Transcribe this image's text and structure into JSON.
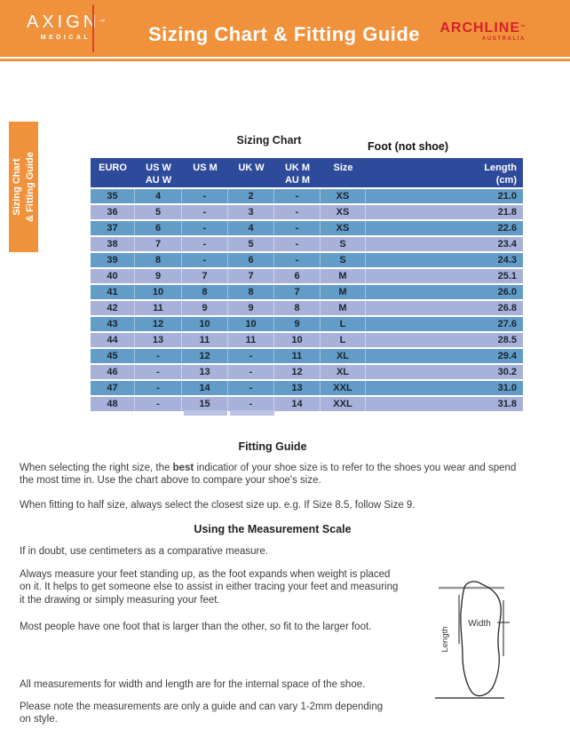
{
  "header": {
    "axign_name": "AXIGN",
    "axign_tm": "™",
    "axign_sub": "MEDICAL",
    "title": "Sizing Chart & Fitting Guide",
    "archline_name": "ARCHLINE",
    "archline_tm": "™",
    "archline_sub": "AUSTRALIA"
  },
  "side_tab": {
    "label": "Sizing Chart\n& Fitting Guide"
  },
  "sizing_chart": {
    "title": "Sizing Chart",
    "note": "Foot (not shoe)",
    "columns": [
      "EURO",
      "US W\nAU W",
      "US M",
      "UK W",
      "UK M\nAU M",
      "Size",
      "Length\n(cm)"
    ],
    "rows": [
      [
        "35",
        "4",
        "-",
        "2",
        "-",
        "XS",
        "21.0"
      ],
      [
        "36",
        "5",
        "-",
        "3",
        "-",
        "XS",
        "21.8"
      ],
      [
        "37",
        "6",
        "-",
        "4",
        "-",
        "XS",
        "22.6"
      ],
      [
        "38",
        "7",
        "-",
        "5",
        "-",
        "S",
        "23.4"
      ],
      [
        "39",
        "8",
        "-",
        "6",
        "-",
        "S",
        "24.3"
      ],
      [
        "40",
        "9",
        "7",
        "7",
        "6",
        "M",
        "25.1"
      ],
      [
        "41",
        "10",
        "8",
        "8",
        "7",
        "M",
        "26.0"
      ],
      [
        "42",
        "11",
        "9",
        "9",
        "8",
        "M",
        "26.8"
      ],
      [
        "43",
        "12",
        "10",
        "10",
        "9",
        "L",
        "27.6"
      ],
      [
        "44",
        "13",
        "11",
        "11",
        "10",
        "L",
        "28.5"
      ],
      [
        "45",
        "-",
        "12",
        "-",
        "11",
        "XL",
        "29.4"
      ],
      [
        "46",
        "-",
        "13",
        "-",
        "12",
        "XL",
        "30.2"
      ],
      [
        "47",
        "-",
        "14",
        "-",
        "13",
        "XXL",
        "31.0"
      ],
      [
        "48",
        "-",
        "15",
        "-",
        "14",
        "XXL",
        "31.8"
      ]
    ]
  },
  "fitting_guide": {
    "heading": "Fitting Guide",
    "p1_before": "When selecting the right size, the ",
    "p1_bold": "best",
    "p1_after": " indicatior of your shoe size is to refer to the shoes you wear and spend\nthe most time in. Use the chart above to compare your shoe's size.",
    "p2": "When fitting to half size, always select the closest size up. e.g. If Size 8.5, follow Size 9."
  },
  "measurement_scale": {
    "heading": "Using the Measurement Scale",
    "p1": "If in doubt, use centimeters as a comparative measure.",
    "p2": "Always measure your feet standing up, as the foot expands when weight is placed\non it. It helps to get someone else to assist in either tracing your feet and measuring\nit the drawing or simply measuring your feet.",
    "p3": "Most people have one foot that is larger than the other, so fit to the larger foot.",
    "p4": "All measurements for width and length are for the internal space of the shoe.",
    "p5": "Please note the measurements are only a guide and can vary 1-2mm depending\non style."
  },
  "diagram": {
    "width_label": "Width",
    "length_label": "Length"
  },
  "colors": {
    "accent_orange": "#F0923C",
    "table_header_blue": "#2E4A9B",
    "row_blue": "#629CC7",
    "row_lavender": "#A8B1DA",
    "brand_red": "#D2232A",
    "logo_line_red": "#D8432A"
  }
}
